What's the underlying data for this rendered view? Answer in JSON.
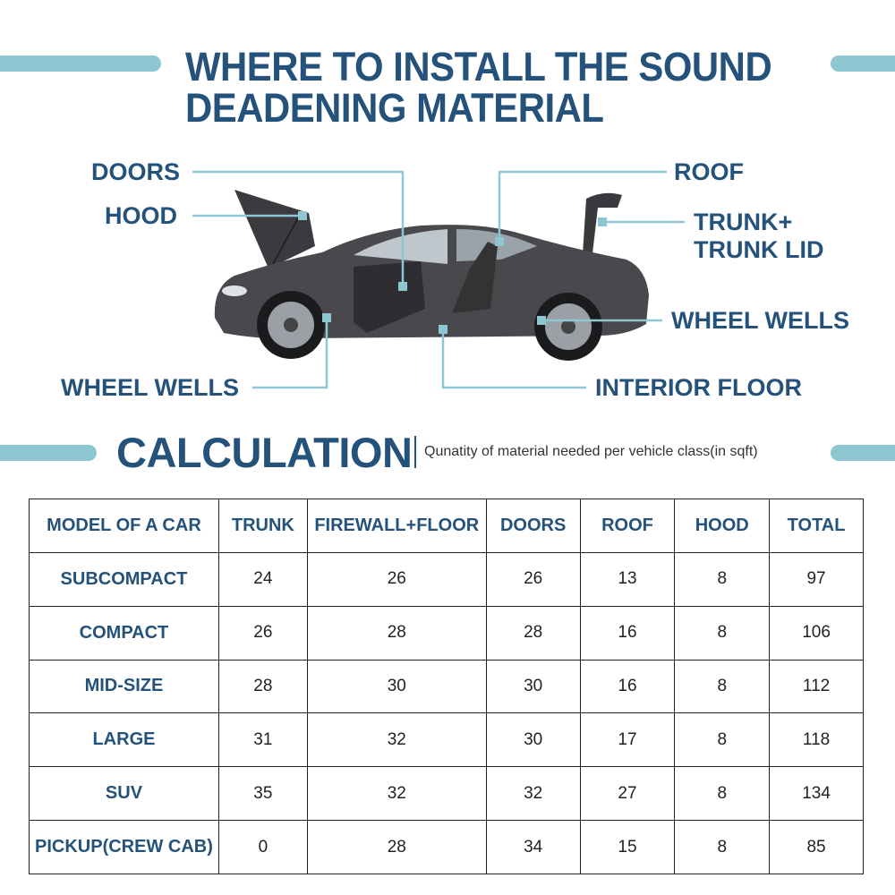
{
  "title_line1": "WHERE TO INSTALL THE SOUND",
  "title_line2": "DEADENING MATERIAL",
  "labels": {
    "doors": "DOORS",
    "hood": "HOOD",
    "roof": "ROOF",
    "trunk_line1": "TRUNK+",
    "trunk_line2": "TRUNK LID",
    "wheel_wells_right": "WHEEL WELLS",
    "wheel_wells_left": "WHEEL WELLS",
    "interior_floor": "INTERIOR FLOOR"
  },
  "calculation": {
    "heading": "CALCULATION",
    "subtitle": "Qunatity of material needed per vehicle class(in sqft)"
  },
  "colors": {
    "accent": "#8ec7d1",
    "text": "#24527a"
  },
  "table": {
    "headers": [
      "MODEL OF A CAR",
      "TRUNK",
      "FIREWALL+FLOOR",
      "DOORS",
      "ROOF",
      "HOOD",
      "TOTAL"
    ],
    "rows": [
      [
        "SUBCOMPACT",
        "24",
        "26",
        "26",
        "13",
        "8",
        "97"
      ],
      [
        "COMPACT",
        "26",
        "28",
        "28",
        "16",
        "8",
        "106"
      ],
      [
        "MID-SIZE",
        "28",
        "30",
        "30",
        "16",
        "8",
        "112"
      ],
      [
        "LARGE",
        "31",
        "32",
        "30",
        "17",
        "8",
        "118"
      ],
      [
        "SUV",
        "35",
        "32",
        "32",
        "27",
        "8",
        "134"
      ],
      [
        "PICKUP(CREW CAB)",
        "0",
        "28",
        "34",
        "15",
        "8",
        "85"
      ]
    ]
  }
}
